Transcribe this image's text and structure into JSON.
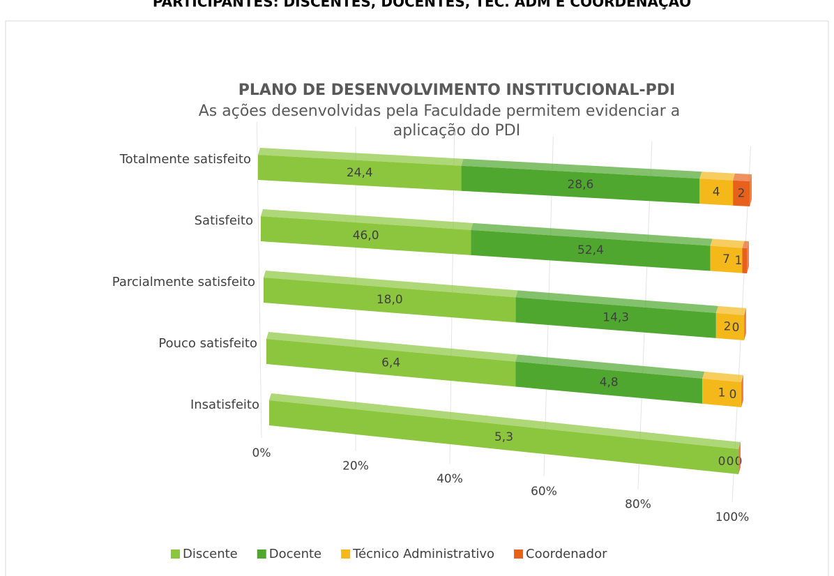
{
  "header": {
    "title": "PARTICIPANTES: DISCENTES, DOCENTES, TEC. ADM E COORDENAÇÃO"
  },
  "chart_data": {
    "type": "bar",
    "orientation": "horizontal",
    "stacking": "percent",
    "title": "PLANO DE DESENVOLVIMENTO INSTITUCIONAL-PDI",
    "subtitle": [
      "As ações desenvolvidas pela Faculdade permitem evidenciar a",
      "aplicação do PDI"
    ],
    "categories": [
      "Totalmente satisfeito",
      "Satisfeito",
      "Parcialmente satisfeito",
      "Pouco satisfeito",
      "Insatisfeito"
    ],
    "series": [
      {
        "name": "Discente",
        "color": "#8cc63e",
        "values": [
          24.4,
          46.0,
          18.0,
          6.4,
          5.3
        ],
        "value_labels": [
          "24,4",
          "46,0",
          "18,0",
          "6,4",
          "5,3"
        ]
      },
      {
        "name": "Docente",
        "color": "#4fa72f",
        "values": [
          28.6,
          52.4,
          14.3,
          4.8,
          0
        ],
        "value_labels": [
          "28,6",
          "52,4",
          "14,3",
          "4,8",
          "0"
        ]
      },
      {
        "name": "Técnico Administrativo",
        "color": "#f5b81b",
        "values": [
          4,
          7,
          2,
          1,
          0
        ]
      },
      {
        "name": "Coordenador",
        "color": "#e8611c",
        "values": [
          2,
          1,
          0,
          0,
          0
        ]
      }
    ],
    "xlim": [
      0,
      100
    ],
    "xticks": [
      {
        "value": 0,
        "label": "0%"
      },
      {
        "value": 20,
        "label": "20%"
      },
      {
        "value": 40,
        "label": "40%"
      },
      {
        "value": 60,
        "label": "60%"
      },
      {
        "value": 80,
        "label": "80%"
      },
      {
        "value": 100,
        "label": "100%"
      }
    ],
    "grid": true,
    "legend": "bottom"
  }
}
